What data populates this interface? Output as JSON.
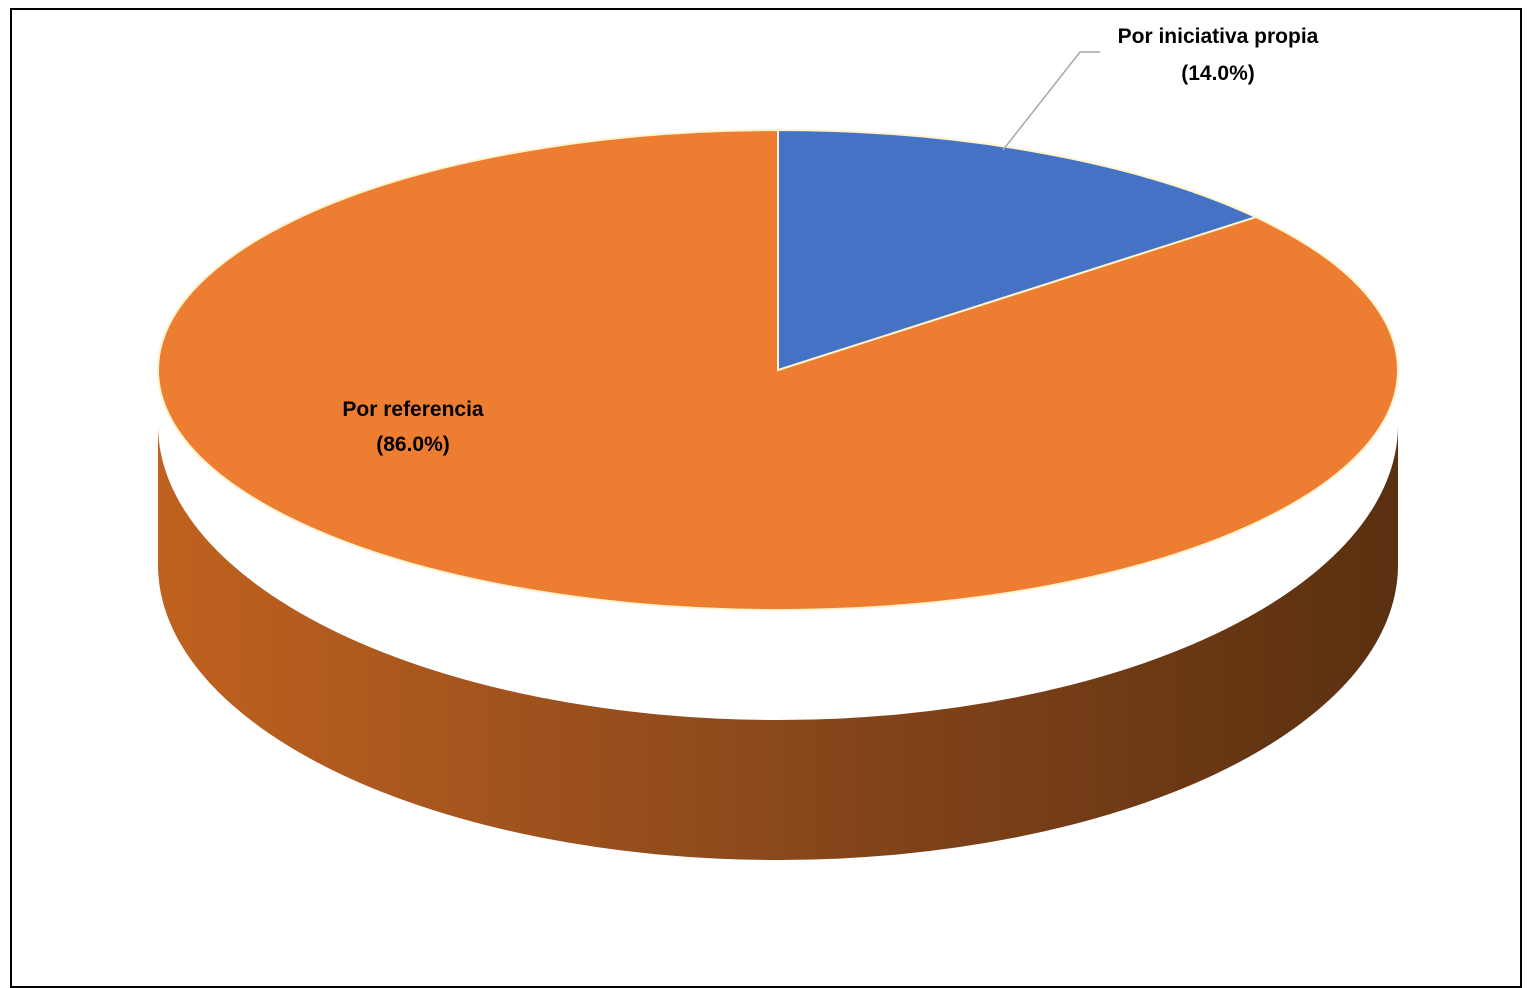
{
  "chart_data": {
    "type": "pie",
    "style": "3d",
    "slices": [
      {
        "label": "Por iniciativa propia",
        "value": 14.0,
        "value_label": "(14.0%)",
        "color": "#4472C4"
      },
      {
        "label": "Por referencia",
        "value": 86.0,
        "value_label": "(86.0%)",
        "color": "#ED7D31"
      }
    ],
    "legend": "none"
  }
}
